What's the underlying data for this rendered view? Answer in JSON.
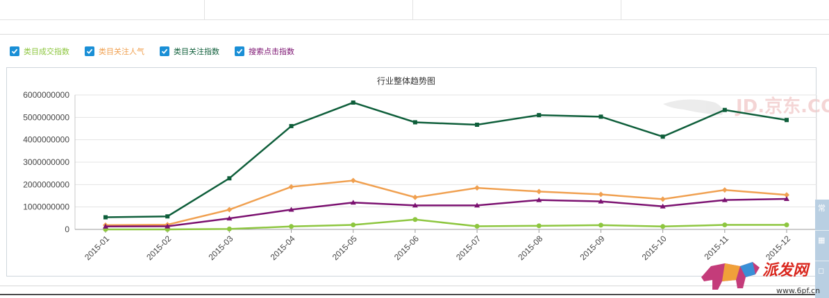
{
  "legend": {
    "items": [
      {
        "label": "类目成交指数",
        "color": "#8dc63f",
        "checked": true
      },
      {
        "label": "类目关注人气",
        "color": "#f0a050",
        "checked": true
      },
      {
        "label": "类目关注指数",
        "color": "#0e5e3a",
        "checked": true
      },
      {
        "label": "搜索点击指数",
        "color": "#7b1170",
        "checked": true
      }
    ]
  },
  "watermark": {
    "jd_text": "JD.京东.COM",
    "brand_text": "派发网",
    "url_text": "www.6pf.cn"
  },
  "side_panel": {
    "glyphs": [
      "常",
      "▦",
      "◻"
    ]
  },
  "chart_data": {
    "type": "line",
    "title": "行业整体趋势图",
    "categories": [
      "2015-01",
      "2015-02",
      "2015-03",
      "2015-04",
      "2015-05",
      "2015-06",
      "2015-07",
      "2015-08",
      "2015-09",
      "2015-10",
      "2015-11",
      "2015-12"
    ],
    "ylim": [
      0,
      6000000000
    ],
    "yticks": [
      0,
      1000000000,
      2000000000,
      3000000000,
      4000000000,
      5000000000,
      6000000000
    ],
    "ytick_labels": [
      "0",
      "1000000000",
      "2000000000",
      "3000000000",
      "4000000000",
      "5000000000",
      "6000000000"
    ],
    "grid": true,
    "series": [
      {
        "name": "类目成交指数",
        "color": "#8dc63f",
        "marker": "circle",
        "values": [
          0,
          0,
          20000000,
          130000000,
          200000000,
          440000000,
          140000000,
          160000000,
          190000000,
          130000000,
          200000000,
          200000000
        ]
      },
      {
        "name": "类目关注人气",
        "color": "#f0a050",
        "marker": "diamond",
        "values": [
          190000000,
          210000000,
          880000000,
          1900000000,
          2180000000,
          1430000000,
          1850000000,
          1690000000,
          1560000000,
          1350000000,
          1760000000,
          1540000000
        ]
      },
      {
        "name": "类目关注指数",
        "color": "#0e5e3a",
        "marker": "square",
        "values": [
          540000000,
          580000000,
          2280000000,
          4610000000,
          5660000000,
          4780000000,
          4670000000,
          5100000000,
          5030000000,
          4140000000,
          5330000000,
          4880000000
        ]
      },
      {
        "name": "搜索点击指数",
        "color": "#7b1170",
        "marker": "triangle",
        "values": [
          130000000,
          140000000,
          490000000,
          880000000,
          1200000000,
          1070000000,
          1070000000,
          1310000000,
          1250000000,
          1030000000,
          1310000000,
          1360000000
        ]
      }
    ]
  }
}
